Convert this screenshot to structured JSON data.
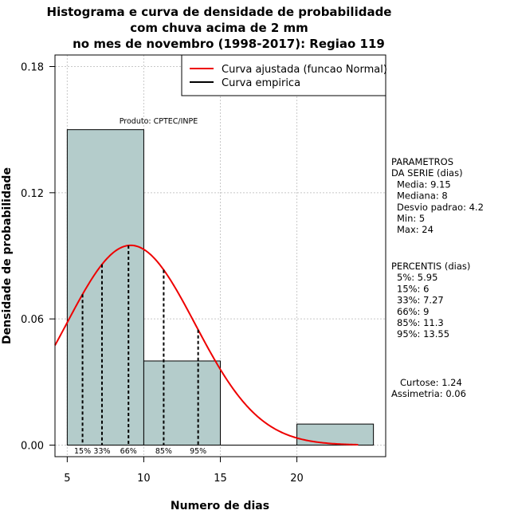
{
  "chart_data": {
    "type": "bar",
    "title": [
      "Histograma e curva de densidade de probabilidade",
      "com chuva acima de 2 mm",
      "no mes de novembro (1998-2017): Regiao 119"
    ],
    "xlabel": "Numero de dias",
    "ylabel": "Densidade de probabilidade",
    "xlim": [
      4.2,
      25.8
    ],
    "ylim": [
      -0.0055,
      0.1855
    ],
    "x_ticks": [
      5,
      10,
      15,
      20
    ],
    "x_tick_labels": [
      "5",
      "10",
      "15",
      "20"
    ],
    "y_ticks": [
      0.0,
      0.06,
      0.12,
      0.18
    ],
    "y_tick_labels": [
      "0.00",
      "0.06",
      "0.12",
      "0.18"
    ],
    "grid": true,
    "bins": [
      {
        "x0": 5,
        "x1": 10,
        "density": 0.15
      },
      {
        "x0": 10,
        "x1": 15,
        "density": 0.04
      },
      {
        "x0": 15,
        "x1": 20,
        "density": 0.0
      },
      {
        "x0": 20,
        "x1": 25,
        "density": 0.01
      }
    ],
    "normal_curve": {
      "name": "Curva ajustada (funcao Normal)",
      "mean": 9.15,
      "sd": 4.2,
      "color": "#ee0000"
    },
    "empirical_curve": {
      "name": "Curva empirica",
      "color": "#000000"
    },
    "legend_position": "top-right",
    "percentile_lines": [
      {
        "label": "15%",
        "value": 6.0
      },
      {
        "label": "33%",
        "value": 7.27
      },
      {
        "label": "66%",
        "value": 9.0
      },
      {
        "label": "85%",
        "value": 11.3
      },
      {
        "label": "95%",
        "value": 13.55
      }
    ],
    "annotation": "Produto: CPTEC/INPE",
    "params_block": [
      "PARAMETROS",
      "DA SERIE (dias)",
      "Media: 9.15",
      "Mediana: 8",
      "Desvio padrao: 4.2",
      "Min: 5",
      "Max: 24"
    ],
    "percentis_block": [
      "PERCENTIS (dias)",
      "5%: 5.95",
      "15%: 6",
      "33%: 7.27",
      "66%: 9",
      "85%: 11.3",
      "95%: 13.55"
    ],
    "shape_block": [
      "Curtose: 1.24",
      "Assimetria: 0.06"
    ],
    "colors": {
      "bar_fill": "#b4cccb",
      "grid": "#c8c8c8"
    }
  }
}
